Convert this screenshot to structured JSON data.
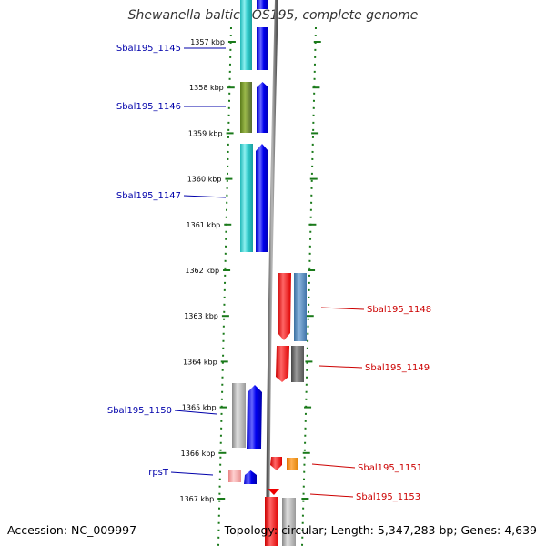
{
  "map": {
    "title": "Shewanella baltica OS195, complete genome",
    "accession": "Accession: NC_009997",
    "topology": "Topology: circular; Length: 5,347,283 bp; Genes: 4,639"
  },
  "ticks": [
    {
      "label": "1357 kbp"
    },
    {
      "label": "1358 kbp"
    },
    {
      "label": "1359 kbp"
    },
    {
      "label": "1360 kbp"
    },
    {
      "label": "1361 kbp"
    },
    {
      "label": "1362 kbp"
    },
    {
      "label": "1363 kbp"
    },
    {
      "label": "1364 kbp"
    },
    {
      "label": "1365 kbp"
    },
    {
      "label": "1366 kbp"
    },
    {
      "label": "1367 kbp"
    }
  ],
  "genes": [
    {
      "name": "Sbal195_1145",
      "strand": "forward"
    },
    {
      "name": "Sbal195_1146",
      "strand": "forward"
    },
    {
      "name": "Sbal195_1147",
      "strand": "forward"
    },
    {
      "name": "Sbal195_1148",
      "strand": "reverse"
    },
    {
      "name": "Sbal195_1149",
      "strand": "reverse"
    },
    {
      "name": "Sbal195_1150",
      "strand": "forward"
    },
    {
      "name": "rpsT",
      "strand": "forward"
    },
    {
      "name": "Sbal195_1151",
      "strand": "reverse"
    },
    {
      "name": "Sbal195_1153",
      "strand": "reverse"
    }
  ],
  "colors": {
    "backbone": "#8a8a8a",
    "tick": "#1a7a1a",
    "forward_cds": "#0000ee",
    "reverse_cds": "#ee0000",
    "cyan_feature": "#33cccc",
    "olive_feature": "#6b8e23",
    "steel_feature": "#4682b4",
    "gray_feature": "#999999",
    "orange_feature": "#ff8c00",
    "pink_feature": "#f4a0a0",
    "label_forward": "#0000aa",
    "label_reverse": "#cc0000"
  }
}
